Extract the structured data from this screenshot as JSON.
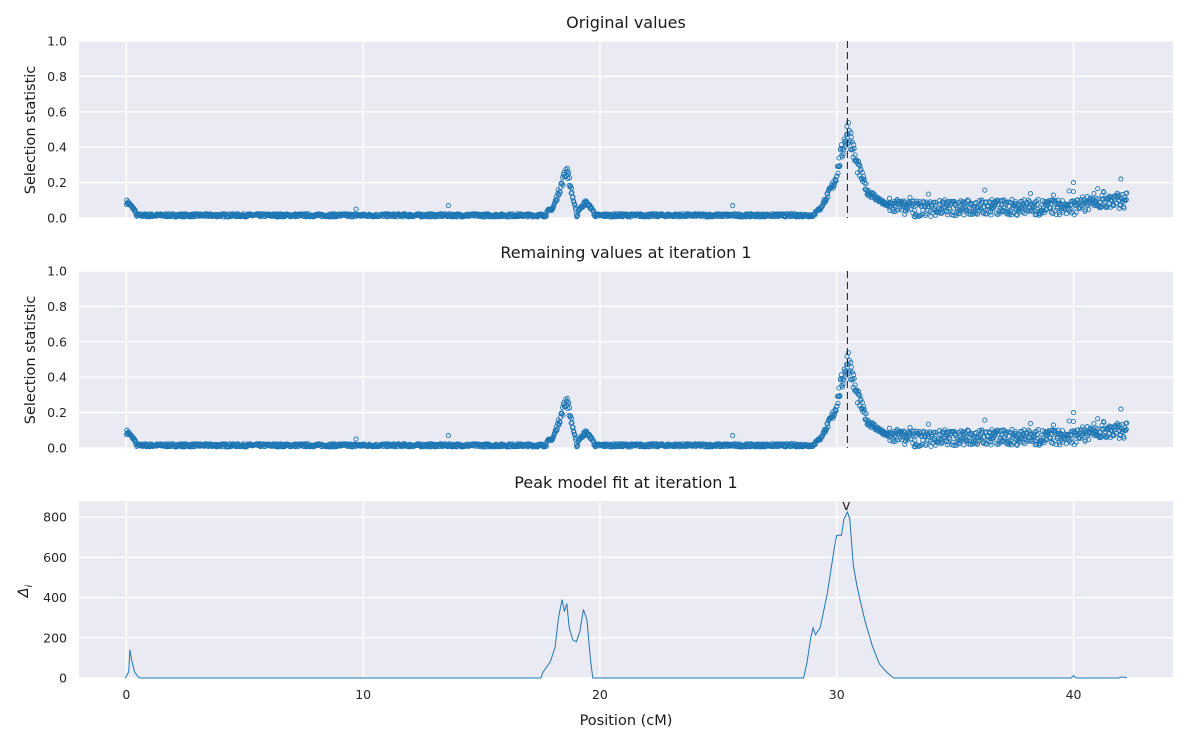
{
  "chart_data": [
    {
      "type": "scatter",
      "title": "Original values",
      "ylabel": "Selection statistic",
      "xlabel": "",
      "xlim": [
        -2,
        44.2
      ],
      "ylim": [
        0,
        1.0
      ],
      "yticks": [
        "0.0",
        "0.2",
        "0.4",
        "0.6",
        "0.8",
        "1.0"
      ],
      "grid": true,
      "marker": "hollow-circle",
      "color": "#1f77b4",
      "peak_line_x": 30.45,
      "anchors": [
        [
          0.05,
          0.09
        ],
        [
          0.25,
          0.06
        ],
        [
          0.6,
          0.01
        ],
        [
          9.5,
          0.02
        ],
        [
          17.5,
          0.03
        ],
        [
          18.0,
          0.05
        ],
        [
          18.4,
          0.2
        ],
        [
          18.6,
          0.28
        ],
        [
          18.8,
          0.15
        ],
        [
          19.0,
          0.03
        ],
        [
          19.4,
          0.09
        ],
        [
          19.8,
          0.03
        ],
        [
          28.5,
          0.01
        ],
        [
          29.3,
          0.05
        ],
        [
          29.9,
          0.2
        ],
        [
          30.3,
          0.42
        ],
        [
          30.5,
          0.5
        ],
        [
          30.8,
          0.32
        ],
        [
          31.3,
          0.15
        ],
        [
          32.0,
          0.08
        ],
        [
          33.0,
          0.05
        ],
        [
          36.0,
          0.06
        ],
        [
          40.0,
          0.06
        ],
        [
          41.0,
          0.1
        ],
        [
          42.2,
          0.1
        ]
      ],
      "annotations": [
        {
          "x": 13.6,
          "y": 0.07
        },
        {
          "x": 9.7,
          "y": 0.05
        },
        {
          "x": 25.6,
          "y": 0.07
        },
        {
          "x": 40.0,
          "y": 0.2
        },
        {
          "x": 42.0,
          "y": 0.22
        }
      ]
    },
    {
      "type": "scatter",
      "title": "Remaining values at iteration 1",
      "ylabel": "Selection statistic",
      "xlabel": "",
      "xlim": [
        -2,
        44.2
      ],
      "ylim": [
        0,
        1.0
      ],
      "yticks": [
        "0.0",
        "0.2",
        "0.4",
        "0.6",
        "0.8",
        "1.0"
      ],
      "grid": true,
      "marker": "hollow-circle",
      "color": "#1f77b4",
      "peak_line_x": 30.45,
      "anchors": [
        [
          0.05,
          0.09
        ],
        [
          0.25,
          0.06
        ],
        [
          0.6,
          0.01
        ],
        [
          9.5,
          0.02
        ],
        [
          17.5,
          0.03
        ],
        [
          18.0,
          0.05
        ],
        [
          18.4,
          0.2
        ],
        [
          18.6,
          0.28
        ],
        [
          18.8,
          0.15
        ],
        [
          19.0,
          0.03
        ],
        [
          19.4,
          0.09
        ],
        [
          19.8,
          0.03
        ],
        [
          28.5,
          0.01
        ],
        [
          29.3,
          0.05
        ],
        [
          29.9,
          0.2
        ],
        [
          30.3,
          0.42
        ],
        [
          30.5,
          0.5
        ],
        [
          30.8,
          0.32
        ],
        [
          31.3,
          0.15
        ],
        [
          32.0,
          0.08
        ],
        [
          33.0,
          0.05
        ],
        [
          36.0,
          0.06
        ],
        [
          40.0,
          0.06
        ],
        [
          41.0,
          0.1
        ],
        [
          42.2,
          0.1
        ]
      ],
      "annotations": [
        {
          "x": 13.6,
          "y": 0.07
        },
        {
          "x": 9.7,
          "y": 0.05
        },
        {
          "x": 25.6,
          "y": 0.07
        },
        {
          "x": 40.0,
          "y": 0.2
        },
        {
          "x": 42.0,
          "y": 0.22
        }
      ]
    },
    {
      "type": "line",
      "title": "Peak model fit at iteration 1",
      "ylabel": "Δ",
      "ylabel_subscript": "i",
      "xlabel": "Position (cM)",
      "xlim": [
        -2,
        44.2
      ],
      "ylim": [
        0,
        880
      ],
      "yticks": [
        "0",
        "200",
        "400",
        "600",
        "800"
      ],
      "xticks": [
        "0",
        "10",
        "20",
        "30",
        "40"
      ],
      "grid": true,
      "color": "#1f77b4",
      "peak_marker": {
        "x": 30.4,
        "label": "v"
      },
      "points": [
        [
          -0.05,
          0
        ],
        [
          0.1,
          30
        ],
        [
          0.15,
          140
        ],
        [
          0.22,
          90
        ],
        [
          0.35,
          30
        ],
        [
          0.5,
          5
        ],
        [
          0.6,
          0
        ],
        [
          17.5,
          0
        ],
        [
          17.6,
          30
        ],
        [
          17.9,
          80
        ],
        [
          18.1,
          150
        ],
        [
          18.25,
          300
        ],
        [
          18.4,
          390
        ],
        [
          18.5,
          330
        ],
        [
          18.6,
          370
        ],
        [
          18.7,
          250
        ],
        [
          18.85,
          190
        ],
        [
          19.0,
          180
        ],
        [
          19.15,
          230
        ],
        [
          19.3,
          340
        ],
        [
          19.45,
          290
        ],
        [
          19.6,
          90
        ],
        [
          19.7,
          0
        ],
        [
          28.6,
          0
        ],
        [
          28.75,
          80
        ],
        [
          28.9,
          200
        ],
        [
          29.0,
          250
        ],
        [
          29.1,
          215
        ],
        [
          29.3,
          250
        ],
        [
          29.6,
          420
        ],
        [
          29.9,
          650
        ],
        [
          30.0,
          710
        ],
        [
          30.2,
          710
        ],
        [
          30.3,
          790
        ],
        [
          30.45,
          825
        ],
        [
          30.55,
          790
        ],
        [
          30.7,
          560
        ],
        [
          30.85,
          460
        ],
        [
          31.0,
          380
        ],
        [
          31.2,
          280
        ],
        [
          31.5,
          160
        ],
        [
          31.8,
          70
        ],
        [
          32.1,
          30
        ],
        [
          32.4,
          0
        ],
        [
          39.9,
          0
        ],
        [
          40.0,
          12
        ],
        [
          40.1,
          0
        ],
        [
          41.9,
          0
        ],
        [
          42.0,
          5
        ],
        [
          42.2,
          3
        ],
        [
          42.25,
          0
        ]
      ]
    }
  ]
}
